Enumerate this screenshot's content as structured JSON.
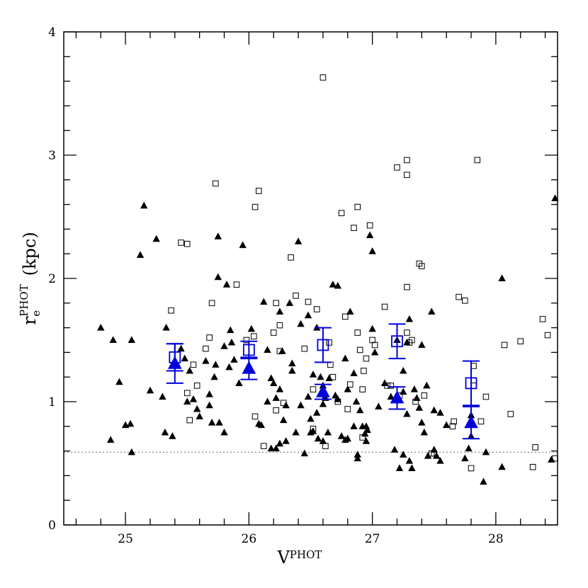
{
  "chart_data": {
    "type": "scatter",
    "xlabel": {
      "main": "V",
      "sup": "PHOT"
    },
    "ylabel": {
      "main": "r",
      "sup": "PHOT",
      "sub": "e",
      "unit": "(kpc)"
    },
    "xlim": [
      24.5,
      28.5
    ],
    "ylim": [
      0,
      4
    ],
    "xticks_major": [
      25,
      26,
      27,
      28
    ],
    "yticks_major": [
      0,
      1,
      2,
      3,
      4
    ],
    "grid": false,
    "reference_line": {
      "y": 0.59,
      "style": "dotted",
      "color": "#888888"
    },
    "series": [
      {
        "marker": "filled-triangle",
        "color": "#000000",
        "points": [
          [
            24.8,
            1.6
          ],
          [
            24.9,
            1.5
          ],
          [
            24.95,
            1.16
          ],
          [
            24.88,
            0.69
          ],
          [
            25.0,
            0.81
          ],
          [
            25.04,
            0.82
          ],
          [
            25.05,
            1.5
          ],
          [
            25.05,
            0.59
          ],
          [
            25.12,
            2.19
          ],
          [
            25.15,
            2.59
          ],
          [
            25.2,
            1.09
          ],
          [
            25.25,
            2.32
          ],
          [
            25.3,
            1.04
          ],
          [
            25.32,
            0.75
          ],
          [
            25.33,
            1.6
          ],
          [
            25.38,
            0.72
          ],
          [
            25.45,
            1.43
          ],
          [
            25.48,
            1.35
          ],
          [
            25.5,
            1.0
          ],
          [
            25.52,
            1.25
          ],
          [
            25.55,
            1.02
          ],
          [
            25.58,
            0.94
          ],
          [
            25.6,
            0.88
          ],
          [
            25.65,
            1.33
          ],
          [
            25.68,
            1.06
          ],
          [
            25.68,
            0.97
          ],
          [
            25.7,
            0.83
          ],
          [
            25.72,
            1.2
          ],
          [
            25.73,
            1.3
          ],
          [
            25.75,
            2.34
          ],
          [
            25.75,
            2.01
          ],
          [
            25.76,
            0.83
          ],
          [
            25.8,
            1.45
          ],
          [
            25.8,
            0.75
          ],
          [
            25.82,
            1.95
          ],
          [
            25.84,
            1.28
          ],
          [
            25.85,
            1.58
          ],
          [
            25.86,
            1.48
          ],
          [
            25.88,
            1.34
          ],
          [
            25.92,
            1.15
          ],
          [
            25.95,
            2.27
          ],
          [
            26.0,
            1.27
          ],
          [
            26.02,
            1.59
          ],
          [
            26.08,
            0.82
          ],
          [
            26.1,
            0.81
          ],
          [
            26.12,
            1.81
          ],
          [
            26.15,
            1.42
          ],
          [
            26.15,
            1.0
          ],
          [
            26.18,
            1.19
          ],
          [
            26.18,
            0.62
          ],
          [
            26.2,
            1.15
          ],
          [
            26.22,
            1.03
          ],
          [
            26.22,
            0.62
          ],
          [
            26.25,
            1.73
          ],
          [
            26.25,
            1.1
          ],
          [
            26.25,
            0.66
          ],
          [
            26.27,
            1.41
          ],
          [
            26.28,
            0.85
          ],
          [
            26.3,
            0.97
          ],
          [
            26.3,
            0.68
          ],
          [
            26.33,
            1.8
          ],
          [
            26.35,
            1.31
          ],
          [
            26.35,
            1.25
          ],
          [
            26.38,
            0.75
          ],
          [
            26.4,
            2.3
          ],
          [
            26.42,
            1.63
          ],
          [
            26.42,
            0.97
          ],
          [
            26.45,
            0.58
          ],
          [
            26.48,
            1.7
          ],
          [
            26.48,
            1.04
          ],
          [
            26.5,
            0.86
          ],
          [
            26.5,
            0.75
          ],
          [
            26.52,
            1.22
          ],
          [
            26.52,
            0.76
          ],
          [
            26.55,
            1.6
          ],
          [
            26.55,
            0.91
          ],
          [
            26.56,
            0.7
          ],
          [
            26.58,
            1.2
          ],
          [
            26.6,
            1.13
          ],
          [
            26.6,
            0.98
          ],
          [
            26.6,
            0.68
          ],
          [
            26.62,
            1.03
          ],
          [
            26.64,
            0.75
          ],
          [
            26.65,
            1.19
          ],
          [
            26.68,
            1.95
          ],
          [
            26.7,
            1.05
          ],
          [
            26.72,
            1.94
          ],
          [
            26.72,
            1.02
          ],
          [
            26.75,
            0.72
          ],
          [
            26.78,
            1.35
          ],
          [
            26.78,
            0.69
          ],
          [
            26.8,
            1.1
          ],
          [
            26.8,
            0.7
          ],
          [
            26.82,
            1.73
          ],
          [
            26.85,
            1.23
          ],
          [
            26.85,
            0.8
          ],
          [
            26.87,
            1.0
          ],
          [
            26.88,
            0.57
          ],
          [
            26.88,
            0.54
          ],
          [
            26.9,
            0.93
          ],
          [
            26.92,
            0.8
          ],
          [
            26.94,
            0.74
          ],
          [
            26.95,
            0.68
          ],
          [
            26.95,
            0.8
          ],
          [
            26.96,
            0.77
          ],
          [
            26.98,
            2.35
          ],
          [
            27.0,
            2.22
          ],
          [
            27.0,
            1.59
          ],
          [
            27.02,
            1.4
          ],
          [
            27.05,
            0.96
          ],
          [
            27.1,
            1.15
          ],
          [
            27.15,
            1.04
          ],
          [
            27.18,
            0.61
          ],
          [
            27.2,
            1.5
          ],
          [
            27.22,
            0.46
          ],
          [
            27.25,
            1.25
          ],
          [
            27.25,
            1.08
          ],
          [
            27.25,
            0.57
          ],
          [
            27.28,
            1.48
          ],
          [
            27.28,
            0.9
          ],
          [
            27.3,
            1.67
          ],
          [
            27.3,
            0.52
          ],
          [
            27.32,
            0.46
          ],
          [
            27.34,
            1.1
          ],
          [
            27.36,
            1.03
          ],
          [
            27.38,
            0.95
          ],
          [
            27.4,
            1.46
          ],
          [
            27.4,
            0.83
          ],
          [
            27.42,
            0.75
          ],
          [
            27.44,
            1.13
          ],
          [
            27.45,
            0.56
          ],
          [
            27.48,
            1.73
          ],
          [
            27.5,
            0.93
          ],
          [
            27.5,
            0.61
          ],
          [
            27.52,
            0.56
          ],
          [
            27.55,
            0.91
          ],
          [
            27.55,
            0.52
          ],
          [
            27.6,
            0.81
          ],
          [
            27.75,
            0.54
          ],
          [
            27.78,
            0.62
          ],
          [
            27.8,
            0.72
          ],
          [
            27.8,
            0.89
          ],
          [
            27.9,
            0.35
          ],
          [
            27.92,
            0.59
          ],
          [
            28.05,
            2.0
          ],
          [
            28.05,
            0.47
          ],
          [
            28.45,
            0.53
          ],
          [
            28.48,
            2.65
          ]
        ]
      },
      {
        "marker": "open-square",
        "color": "#000000",
        "points": [
          [
            25.37,
            1.74
          ],
          [
            25.45,
            2.29
          ],
          [
            25.5,
            2.28
          ],
          [
            25.5,
            1.07
          ],
          [
            25.52,
            0.85
          ],
          [
            25.55,
            1.3
          ],
          [
            25.58,
            1.13
          ],
          [
            25.65,
            1.43
          ],
          [
            25.68,
            1.52
          ],
          [
            25.7,
            1.8
          ],
          [
            25.73,
            2.77
          ],
          [
            25.9,
            1.95
          ],
          [
            25.98,
            1.5
          ],
          [
            26.04,
            1.53
          ],
          [
            26.05,
            2.58
          ],
          [
            26.05,
            0.88
          ],
          [
            26.08,
            2.71
          ],
          [
            26.12,
            0.64
          ],
          [
            26.2,
            1.56
          ],
          [
            26.22,
            1.8
          ],
          [
            26.22,
            0.93
          ],
          [
            26.25,
            1.62
          ],
          [
            26.25,
            1.41
          ],
          [
            26.28,
            0.99
          ],
          [
            26.34,
            2.17
          ],
          [
            26.38,
            1.86
          ],
          [
            26.45,
            1.43
          ],
          [
            26.48,
            1.81
          ],
          [
            26.52,
            1.1
          ],
          [
            26.52,
            0.78
          ],
          [
            26.55,
            1.75
          ],
          [
            26.6,
            3.63
          ],
          [
            26.62,
            0.64
          ],
          [
            26.65,
            1.48
          ],
          [
            26.66,
            1.3
          ],
          [
            26.68,
            1.2
          ],
          [
            26.72,
            1.0
          ],
          [
            26.75,
            2.53
          ],
          [
            26.78,
            1.69
          ],
          [
            26.8,
            0.94
          ],
          [
            26.82,
            1.14
          ],
          [
            26.85,
            2.41
          ],
          [
            26.88,
            1.56
          ],
          [
            26.88,
            2.58
          ],
          [
            26.9,
            1.42
          ],
          [
            26.92,
            0.71
          ],
          [
            26.92,
            1.1
          ],
          [
            26.93,
            1.25
          ],
          [
            26.95,
            1.35
          ],
          [
            26.98,
            2.43
          ],
          [
            27.0,
            1.5
          ],
          [
            27.02,
            1.46
          ],
          [
            27.1,
            1.77
          ],
          [
            27.12,
            1.13
          ],
          [
            27.15,
            1.13
          ],
          [
            27.2,
            2.9
          ],
          [
            27.22,
            1.05
          ],
          [
            27.28,
            2.96
          ],
          [
            27.28,
            2.84
          ],
          [
            27.28,
            1.93
          ],
          [
            27.28,
            1.56
          ],
          [
            27.3,
            1.48
          ],
          [
            27.32,
            1.5
          ],
          [
            27.35,
            1.0
          ],
          [
            27.38,
            2.12
          ],
          [
            27.4,
            2.1
          ],
          [
            27.42,
            1.05
          ],
          [
            27.48,
            0.58
          ],
          [
            27.5,
            0.58
          ],
          [
            27.65,
            0.8
          ],
          [
            27.66,
            0.84
          ],
          [
            27.7,
            1.85
          ],
          [
            27.75,
            1.82
          ],
          [
            27.8,
            0.46
          ],
          [
            27.82,
            1.29
          ],
          [
            27.82,
            1.13
          ],
          [
            27.85,
            2.96
          ],
          [
            27.88,
            0.84
          ],
          [
            27.92,
            1.04
          ],
          [
            28.07,
            1.46
          ],
          [
            28.12,
            0.9
          ],
          [
            28.2,
            1.49
          ],
          [
            28.3,
            0.47
          ],
          [
            28.32,
            0.63
          ],
          [
            28.38,
            1.67
          ],
          [
            28.42,
            1.54
          ],
          [
            28.48,
            0.54
          ]
        ]
      },
      {
        "name": "",
        "marker": "large-open-square",
        "color": "#0000dd",
        "points": [
          [
            25.4,
            1.36
          ],
          [
            26.0,
            1.42
          ],
          [
            26.6,
            1.46
          ],
          [
            27.2,
            1.49
          ],
          [
            27.8,
            1.15
          ]
        ],
        "errors": [
          0.11,
          0.07,
          0.14,
          0.14,
          0.18
        ]
      },
      {
        "name": "",
        "marker": "large-filled-triangle",
        "color": "#0000dd",
        "points": [
          [
            25.4,
            1.31
          ],
          [
            26.0,
            1.27
          ],
          [
            26.6,
            1.08
          ],
          [
            27.2,
            1.03
          ],
          [
            27.8,
            0.83
          ]
        ],
        "errors": [
          0.16,
          0.09,
          0.06,
          0.09,
          0.13
        ]
      }
    ]
  }
}
